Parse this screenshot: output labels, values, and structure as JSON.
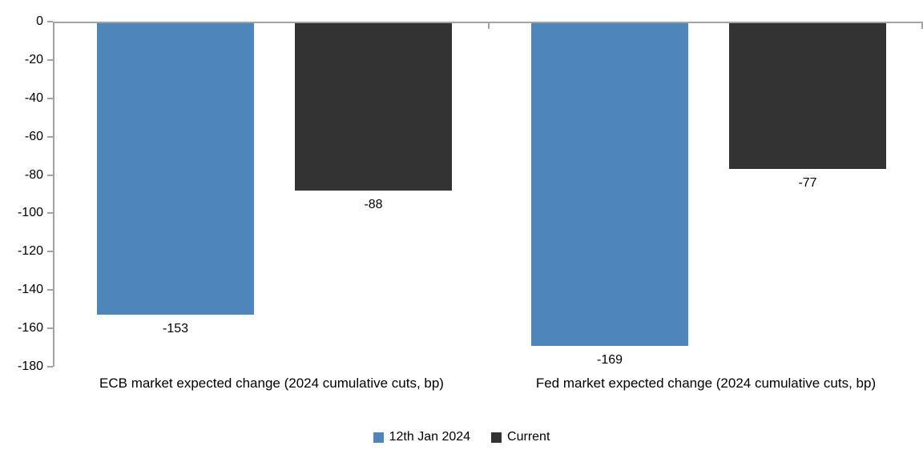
{
  "chart_data": {
    "type": "bar",
    "title": "",
    "xlabel": "",
    "ylabel": "",
    "categories": [
      "ECB market expected change (2024 cumulative cuts, bp)",
      "Fed market expected change (2024 cumulative cuts, bp)"
    ],
    "series": [
      {
        "name": "12th Jan 2024",
        "color": "#4E86BC",
        "values": [
          -153,
          -169
        ]
      },
      {
        "name": "Current",
        "color": "#333333",
        "values": [
          -88,
          -77
        ]
      }
    ],
    "data_labels": [
      [
        "-153",
        "-169"
      ],
      [
        "-88",
        "-77"
      ]
    ],
    "ylim": [
      -180,
      0
    ],
    "yticks": [
      0,
      -20,
      -40,
      -60,
      -80,
      -100,
      -120,
      -140,
      -160,
      -180
    ],
    "grid": false,
    "legend_position": "bottom"
  },
  "colors": {
    "axis": "#a3a3a3",
    "text": "#000000",
    "background": "#ffffff"
  }
}
